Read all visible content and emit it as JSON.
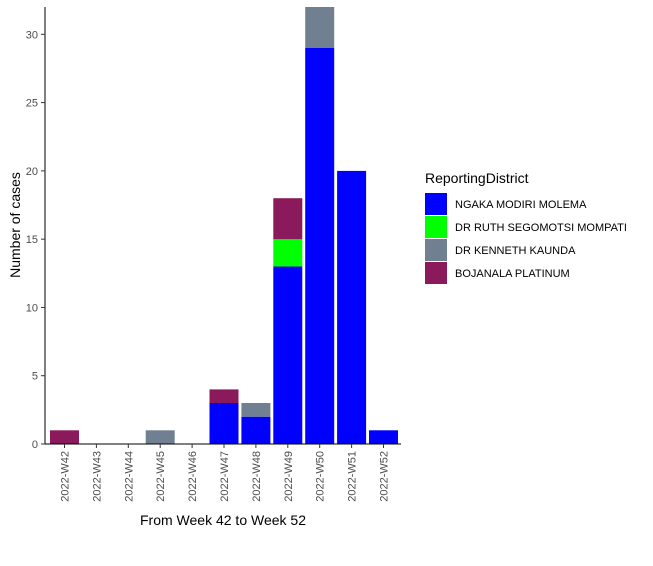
{
  "chart_data": {
    "type": "bar",
    "stacked": true,
    "title": "",
    "xlabel": "From Week 42 to Week 52",
    "ylabel": "Number of cases",
    "ylim": [
      0,
      32
    ],
    "yticks": [
      0,
      5,
      10,
      15,
      20,
      25,
      30
    ],
    "grid": false,
    "legend_title": "ReportingDistrict",
    "legend_position": "right",
    "categories": [
      "2022-W42",
      "2022-W43",
      "2022-W44",
      "2022-W45",
      "2022-W46",
      "2022-W47",
      "2022-W48",
      "2022-W49",
      "2022-W50",
      "2022-W51",
      "2022-W52"
    ],
    "series": [
      {
        "name": "NGAKA MODIRI MOLEMA",
        "color": "#0000ff",
        "values": [
          0,
          0,
          0,
          0,
          0,
          3,
          2,
          13,
          29,
          20,
          1
        ]
      },
      {
        "name": "DR RUTH SEGOMOTSI MOMPATI",
        "color": "#00ff00",
        "values": [
          0,
          0,
          0,
          0,
          0,
          0,
          0,
          2,
          0,
          0,
          0
        ]
      },
      {
        "name": "DR KENNETH KAUNDA",
        "color": "#708090",
        "values": [
          0,
          0,
          0,
          1,
          0,
          0,
          1,
          0,
          3,
          0,
          0
        ]
      },
      {
        "name": "BOJANALA PLATINUM",
        "color": "#8b1a5c",
        "values": [
          1,
          0,
          0,
          0,
          0,
          1,
          0,
          3,
          0,
          0,
          0
        ]
      }
    ]
  }
}
